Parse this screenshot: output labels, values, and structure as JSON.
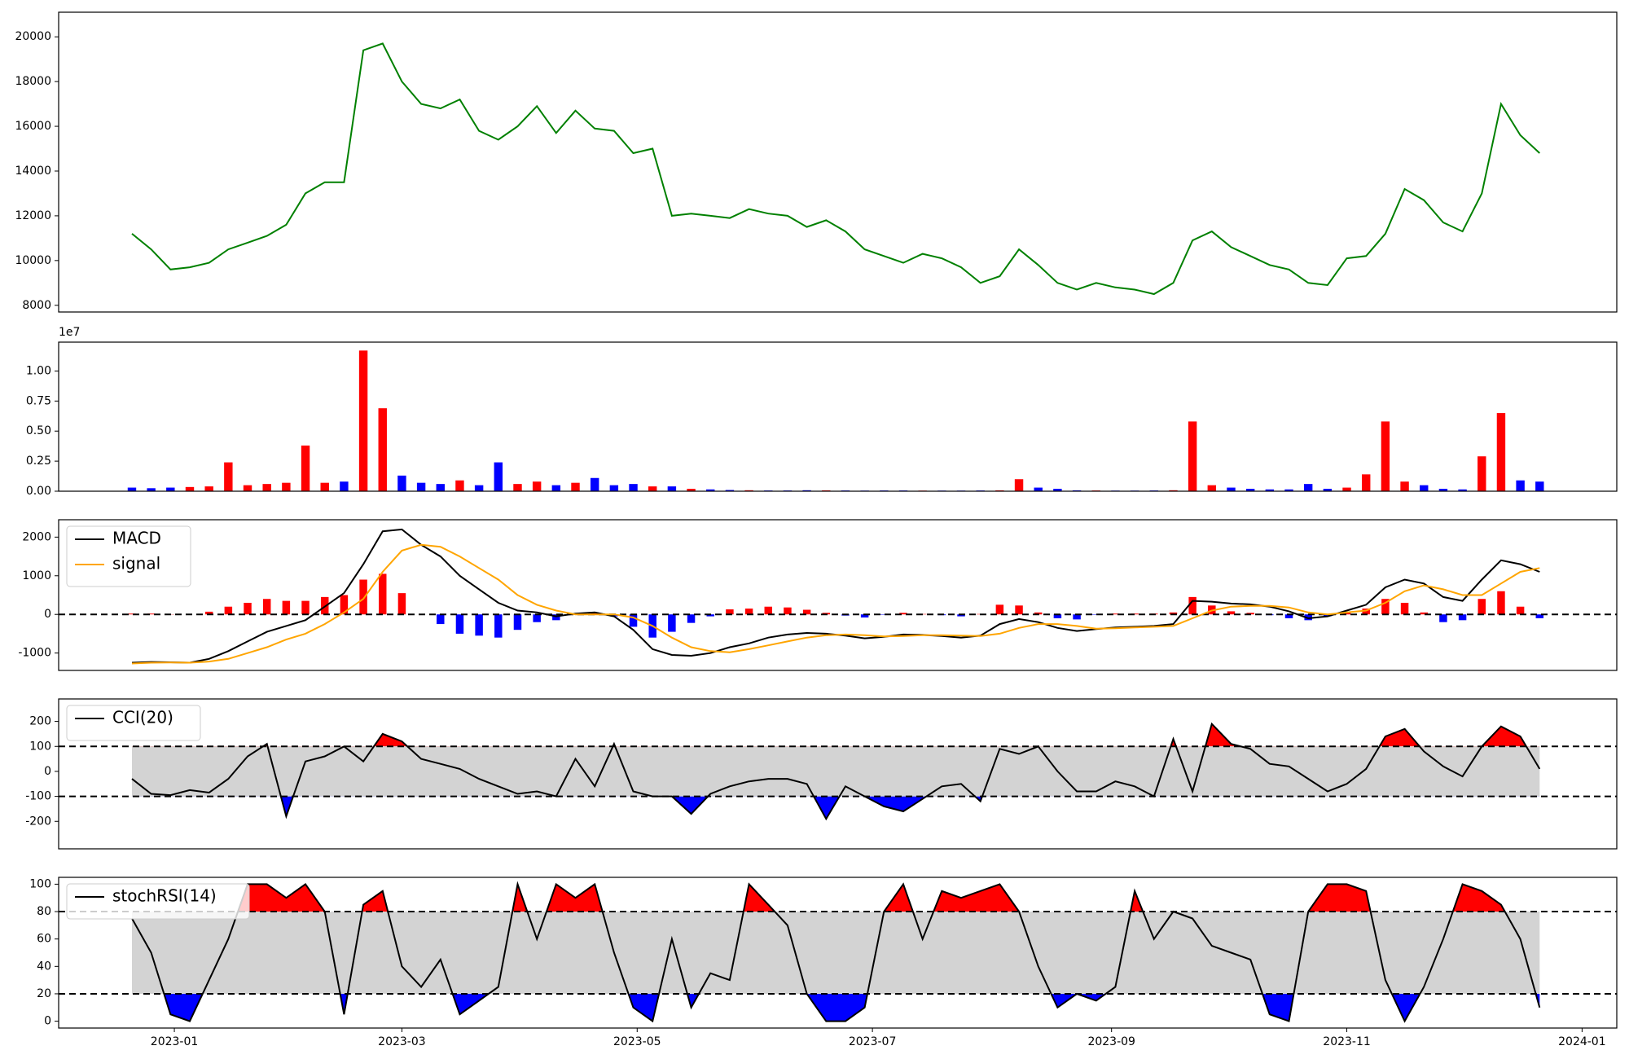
{
  "chart_data": [
    {
      "type": "line",
      "color": "green",
      "x": [
        "2022-12-21",
        "2022-12-26",
        "2022-12-31",
        "2023-01-05",
        "2023-01-10",
        "2023-01-15",
        "2023-01-20",
        "2023-01-25",
        "2023-01-30",
        "2023-02-04",
        "2023-02-09",
        "2023-02-14",
        "2023-02-19",
        "2023-02-24",
        "2023-03-01",
        "2023-03-06",
        "2023-03-11",
        "2023-03-16",
        "2023-03-21",
        "2023-03-26",
        "2023-03-31",
        "2023-04-05",
        "2023-04-10",
        "2023-04-15",
        "2023-04-20",
        "2023-04-25",
        "2023-04-30",
        "2023-05-05",
        "2023-05-10",
        "2023-05-15",
        "2023-05-20",
        "2023-05-25",
        "2023-05-30",
        "2023-06-04",
        "2023-06-09",
        "2023-06-14",
        "2023-06-19",
        "2023-06-24",
        "2023-06-29",
        "2023-07-04",
        "2023-07-09",
        "2023-07-14",
        "2023-07-19",
        "2023-07-24",
        "2023-07-29",
        "2023-08-03",
        "2023-08-08",
        "2023-08-13",
        "2023-08-18",
        "2023-08-23",
        "2023-08-28",
        "2023-09-02",
        "2023-09-07",
        "2023-09-12",
        "2023-09-17",
        "2023-09-22",
        "2023-09-27",
        "2023-10-02",
        "2023-10-07",
        "2023-10-12",
        "2023-10-17",
        "2023-10-22",
        "2023-10-27",
        "2023-11-01",
        "2023-11-06",
        "2023-11-11",
        "2023-11-16",
        "2023-11-21",
        "2023-11-26",
        "2023-12-01",
        "2023-12-06",
        "2023-12-11",
        "2023-12-16",
        "2023-12-21"
      ],
      "values": [
        11200,
        10500,
        9600,
        9700,
        9900,
        10500,
        10800,
        11100,
        11600,
        13000,
        13500,
        13500,
        19400,
        19700,
        18000,
        17000,
        16800,
        17200,
        15800,
        15400,
        16000,
        16900,
        15700,
        16700,
        15900,
        15800,
        14800,
        15000,
        12000,
        12100,
        12000,
        11900,
        12300,
        12100,
        12000,
        11500,
        11800,
        11300,
        10500,
        10200,
        9900,
        10300,
        10100,
        9700,
        9000,
        9300,
        10500,
        9800,
        9000,
        8700,
        9000,
        8800,
        8700,
        8500,
        9000,
        10900,
        11300,
        10600,
        10200,
        9800,
        9600,
        9000,
        8900,
        10100,
        10200,
        11200,
        13200,
        12700,
        11700,
        11300,
        13000,
        17000,
        15600,
        14800
      ],
      "ylim": [
        7700,
        21100
      ],
      "yticks": [
        8000,
        10000,
        12000,
        14000,
        16000,
        18000,
        20000
      ]
    },
    {
      "type": "bar",
      "offset_label": "1e7",
      "values": [
        300000,
        250000,
        300000,
        350000,
        400000,
        2400000,
        500000,
        600000,
        700000,
        3800000,
        700000,
        800000,
        11700000,
        6900000,
        1300000,
        700000,
        600000,
        900000,
        500000,
        2400000,
        600000,
        800000,
        500000,
        700000,
        1100000,
        500000,
        600000,
        400000,
        400000,
        200000,
        150000,
        100000,
        80000,
        60000,
        60000,
        80000,
        70000,
        60000,
        50000,
        60000,
        60000,
        50000,
        50000,
        50000,
        60000,
        70000,
        1000000,
        300000,
        200000,
        70000,
        60000,
        50000,
        50000,
        60000,
        80000,
        5800000,
        500000,
        300000,
        200000,
        150000,
        150000,
        600000,
        200000,
        300000,
        1400000,
        5800000,
        800000,
        500000,
        200000,
        150000,
        2900000,
        6500000,
        900000,
        800000
      ],
      "colors": [
        "blue",
        "blue",
        "blue",
        "red",
        "red",
        "red",
        "red",
        "red",
        "red",
        "red",
        "red",
        "blue",
        "red",
        "red",
        "blue",
        "blue",
        "blue",
        "red",
        "blue",
        "blue",
        "red",
        "red",
        "blue",
        "red",
        "blue",
        "blue",
        "blue",
        "red",
        "blue",
        "red",
        "blue",
        "blue",
        "red",
        "blue",
        "blue",
        "blue",
        "red",
        "blue",
        "blue",
        "blue",
        "blue",
        "red",
        "blue",
        "blue",
        "blue",
        "red",
        "red",
        "blue",
        "blue",
        "blue",
        "red",
        "blue",
        "blue",
        "blue",
        "red",
        "red",
        "red",
        "blue",
        "blue",
        "blue",
        "blue",
        "blue",
        "blue",
        "red",
        "red",
        "red",
        "red",
        "blue",
        "blue",
        "blue",
        "red",
        "red",
        "blue",
        "blue"
      ],
      "ylim": [
        0,
        12400000
      ],
      "yticks": [
        {
          "value": 0,
          "label": "0.00"
        },
        {
          "value": 2500000,
          "label": "0.25"
        },
        {
          "value": 5000000,
          "label": "0.50"
        },
        {
          "value": 7500000,
          "label": "0.75"
        },
        {
          "value": 10000000,
          "label": "1.00"
        }
      ]
    },
    {
      "type": "macd",
      "legend": "upper left",
      "hline": 0,
      "series": [
        {
          "name": "MACD",
          "color": "black",
          "values": [
            -1250,
            -1230,
            -1240,
            -1250,
            -1150,
            -950,
            -700,
            -450,
            -300,
            -150,
            200,
            550,
            1300,
            2150,
            2200,
            1800,
            1500,
            1000,
            650,
            300,
            100,
            50,
            -50,
            20,
            50,
            -50,
            -400,
            -900,
            -1050,
            -1070,
            -1000,
            -850,
            -750,
            -600,
            -520,
            -480,
            -500,
            -550,
            -620,
            -580,
            -520,
            -530,
            -560,
            -600,
            -550,
            -250,
            -120,
            -200,
            -350,
            -430,
            -380,
            -340,
            -320,
            -300,
            -250,
            350,
            330,
            280,
            260,
            200,
            80,
            -100,
            -50,
            100,
            250,
            700,
            900,
            800,
            450,
            350,
            900,
            1400,
            1300,
            1100
          ]
        },
        {
          "name": "signal",
          "color": "orange",
          "values": [
            -1270,
            -1250,
            -1245,
            -1250,
            -1220,
            -1150,
            -1000,
            -850,
            -650,
            -500,
            -250,
            50,
            400,
            1100,
            1650,
            1800,
            1750,
            1500,
            1200,
            900,
            500,
            250,
            100,
            0,
            0,
            0,
            -80,
            -300,
            -600,
            -850,
            -950,
            -980,
            -900,
            -800,
            -700,
            -600,
            -540,
            -520,
            -540,
            -570,
            -560,
            -540,
            -540,
            -550,
            -560,
            -500,
            -350,
            -250,
            -250,
            -300,
            -370,
            -360,
            -340,
            -320,
            -300,
            -100,
            100,
            200,
            220,
            220,
            180,
            50,
            0,
            50,
            100,
            300,
            600,
            750,
            650,
            500,
            500,
            800,
            1100,
            1200
          ]
        }
      ],
      "histogram": {
        "color_up": "red",
        "color_down": "blue",
        "values": [
          20,
          20,
          5,
          0,
          70,
          200,
          300,
          400,
          350,
          350,
          450,
          500,
          900,
          1050,
          550,
          0,
          -250,
          -500,
          -550,
          -600,
          -400,
          -200,
          -150,
          20,
          50,
          -50,
          -320,
          -600,
          -450,
          -220,
          -50,
          130,
          150,
          200,
          180,
          120,
          40,
          -30,
          -80,
          -10,
          40,
          10,
          -20,
          -50,
          10,
          250,
          230,
          50,
          -100,
          -130,
          -10,
          20,
          20,
          20,
          50,
          450,
          230,
          80,
          40,
          -20,
          -100,
          -150,
          -50,
          50,
          150,
          400,
          300,
          50,
          -200,
          -150,
          400,
          600,
          200,
          -100
        ]
      },
      "ylim": [
        -1450,
        2450
      ],
      "yticks": [
        -1000,
        0,
        1000,
        2000
      ]
    },
    {
      "type": "oscillator",
      "legend": "upper left",
      "thresholds": [
        100,
        -100
      ],
      "band_color": "lightgray",
      "upper_color": "red",
      "lower_color": "blue",
      "series": [
        {
          "name": "CCI(20)",
          "color": "black",
          "values": [
            -30,
            -90,
            -95,
            -75,
            -85,
            -30,
            60,
            110,
            -180,
            40,
            60,
            100,
            40,
            150,
            120,
            50,
            30,
            10,
            -30,
            -60,
            -90,
            -80,
            -100,
            50,
            -60,
            110,
            -80,
            -100,
            -100,
            -170,
            -90,
            -60,
            -40,
            -30,
            -30,
            -50,
            -190,
            -60,
            -100,
            -140,
            -160,
            -110,
            -60,
            -50,
            -120,
            90,
            70,
            100,
            0,
            -80,
            -80,
            -40,
            -60,
            -100,
            130,
            -80,
            190,
            110,
            90,
            30,
            20,
            -30,
            -80,
            -50,
            10,
            140,
            170,
            80,
            20,
            -20,
            100,
            180,
            140,
            10
          ]
        }
      ],
      "ylim": [
        -310,
        290
      ],
      "yticks": [
        -200,
        -100,
        0,
        100,
        200
      ]
    },
    {
      "type": "oscillator",
      "legend": "upper left",
      "thresholds": [
        80,
        20
      ],
      "band_color": "lightgray",
      "upper_color": "red",
      "lower_color": "blue",
      "series": [
        {
          "name": "stochRSI(14)",
          "color": "black",
          "values": [
            75,
            50,
            5,
            0,
            30,
            60,
            100,
            100,
            90,
            100,
            80,
            5,
            85,
            95,
            40,
            25,
            45,
            5,
            15,
            25,
            100,
            60,
            100,
            90,
            100,
            50,
            10,
            0,
            60,
            10,
            35,
            30,
            100,
            85,
            70,
            20,
            0,
            0,
            10,
            80,
            100,
            60,
            95,
            90,
            95,
            100,
            80,
            40,
            10,
            20,
            15,
            25,
            95,
            60,
            80,
            75,
            55,
            50,
            45,
            5,
            0,
            80,
            100,
            100,
            95,
            30,
            0,
            25,
            60,
            100,
            95,
            85,
            60,
            10
          ]
        }
      ],
      "ylim": [
        -5,
        105
      ],
      "yticks": [
        0,
        20,
        40,
        60,
        80,
        100
      ],
      "xlim": [
        "2022-12-02",
        "2024-01-10"
      ],
      "xticks": [
        {
          "value": "2023-01-01",
          "label": "2023-01"
        },
        {
          "value": "2023-03-01",
          "label": "2023-03"
        },
        {
          "value": "2023-05-01",
          "label": "2023-05"
        },
        {
          "value": "2023-07-01",
          "label": "2023-07"
        },
        {
          "value": "2023-09-01",
          "label": "2023-09"
        },
        {
          "value": "2023-11-01",
          "label": "2023-11"
        },
        {
          "value": "2024-01-01",
          "label": "2024-01"
        }
      ]
    }
  ]
}
